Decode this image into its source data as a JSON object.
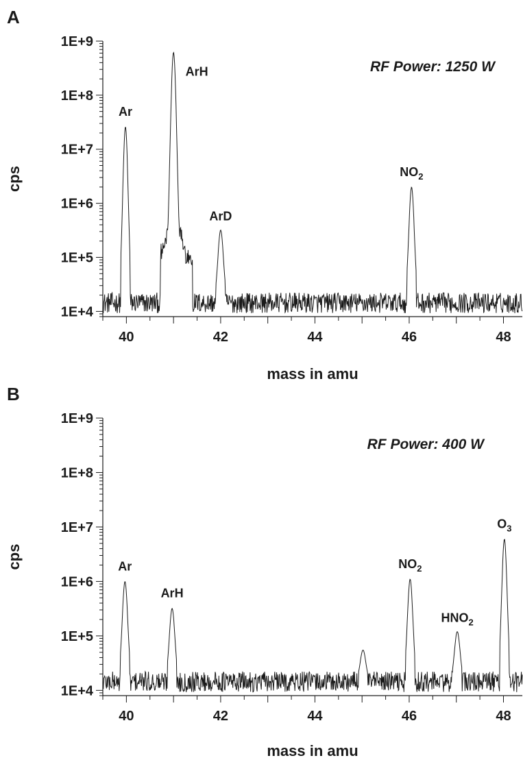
{
  "chart_data": [
    {
      "type": "line",
      "panel": "A",
      "annotation": "RF Power: 1250 W",
      "xlabel": "mass in amu",
      "ylabel": "cps",
      "xlim": [
        39.5,
        48.4
      ],
      "ylim": [
        8000,
        1000000000
      ],
      "yscale": "log",
      "xticks": [
        40,
        42,
        44,
        46,
        48
      ],
      "ytick_labels": [
        "1E+4",
        "1E+5",
        "1E+6",
        "1E+7",
        "1E+8",
        "1E+9"
      ],
      "grid": false,
      "baseline_cps": 15000,
      "peaks": [
        {
          "label": "Ar",
          "sub": "",
          "x": 39.98,
          "y": 26000000
        },
        {
          "label": "ArH",
          "sub": "",
          "x": 41.0,
          "y": 620000000
        },
        {
          "label": "ArD",
          "sub": "",
          "x": 42.0,
          "y": 320000
        },
        {
          "label": "NO",
          "sub": "2",
          "x": 46.05,
          "y": 2000000
        }
      ]
    },
    {
      "type": "line",
      "panel": "B",
      "annotation": "RF Power: 400 W",
      "xlabel": "mass in amu",
      "ylabel": "cps",
      "xlim": [
        39.5,
        48.4
      ],
      "ylim": [
        8000,
        1000000000
      ],
      "yscale": "log",
      "xticks": [
        40,
        42,
        44,
        46,
        48
      ],
      "ytick_labels": [
        "1E+4",
        "1E+5",
        "1E+6",
        "1E+7",
        "1E+8",
        "1E+9"
      ],
      "grid": false,
      "baseline_cps": 15000,
      "peaks": [
        {
          "label": "Ar",
          "sub": "",
          "x": 39.97,
          "y": 1000000
        },
        {
          "label": "ArH",
          "sub": "",
          "x": 40.97,
          "y": 320000
        },
        {
          "label": "",
          "sub": "",
          "x": 45.02,
          "y": 55000
        },
        {
          "label": "NO",
          "sub": "2",
          "x": 46.02,
          "y": 1100000
        },
        {
          "label": "HNO",
          "sub": "2",
          "x": 47.02,
          "y": 120000
        },
        {
          "label": "O",
          "sub": "3",
          "x": 48.02,
          "y": 6000000
        }
      ]
    }
  ]
}
